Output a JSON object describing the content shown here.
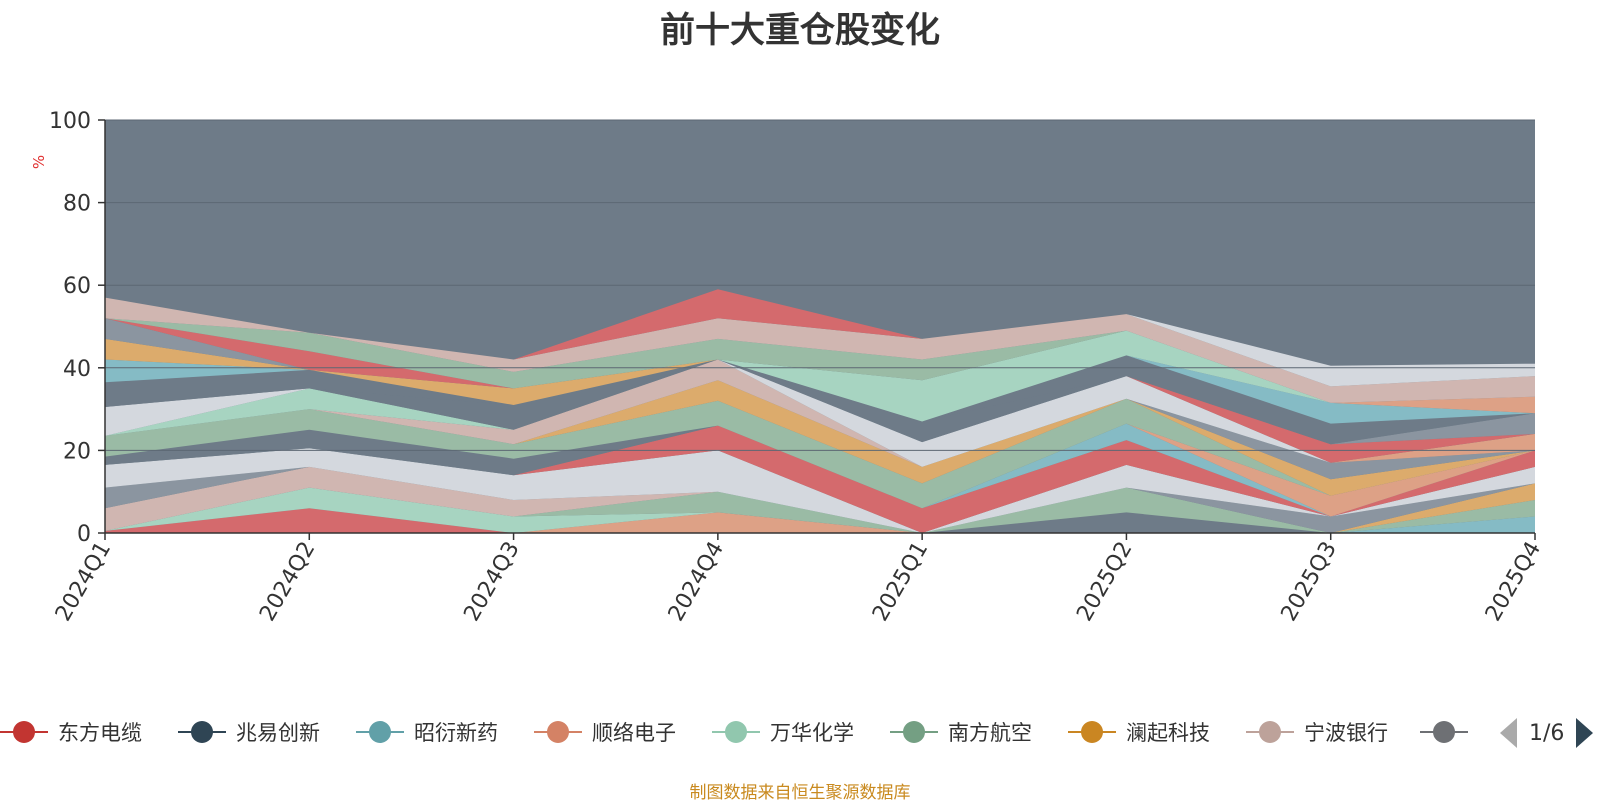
{
  "title": "前十大重仓股变化",
  "source": "制图数据来自恒生聚源数据库",
  "pager": {
    "text": "1/6"
  },
  "colors": {
    "background_area": "#6e7b88",
    "axis": "#333333",
    "grid": "#5c6773",
    "unit": "#e03030"
  },
  "chart_data": {
    "type": "area",
    "stacked": true,
    "categories": [
      "2024Q1",
      "2024Q2",
      "2024Q3",
      "2024Q4",
      "2025Q1",
      "2025Q2",
      "2025Q3",
      "2025Q4"
    ],
    "ylabel": "%",
    "ylim": [
      0,
      100
    ],
    "yticks": [
      0,
      20,
      40,
      60,
      80,
      100
    ],
    "grid": true,
    "legend_position": "bottom",
    "legend": [
      "东方电缆",
      "兆易创新",
      "昭衍新药",
      "顺络电子",
      "万华化学",
      "南方航空",
      "澜起科技",
      "宁波银行"
    ],
    "series": [
      {
        "name": "东方电缆",
        "color": "#d9696b",
        "values": [
          0.5,
          6,
          0,
          0,
          0,
          0,
          0,
          0
        ]
      },
      {
        "name": "",
        "color": "#e3a386",
        "values": [
          0,
          0,
          0,
          5,
          0,
          0,
          0,
          0
        ]
      },
      {
        "name": "",
        "color": "#6e7b88",
        "values": [
          0,
          0,
          0,
          0,
          0,
          5,
          0,
          0
        ]
      },
      {
        "name": "昭衍新药",
        "color": "#86bfc8",
        "values": [
          0,
          0,
          0,
          0,
          0,
          0,
          0,
          4
        ]
      },
      {
        "name": "万华化学",
        "color": "#aad9c4",
        "values": [
          0,
          5,
          4,
          0,
          0,
          0,
          0,
          0
        ]
      },
      {
        "name": "南方航空",
        "color": "#9cbfa6",
        "values": [
          0,
          0,
          0,
          5,
          0,
          6,
          0,
          4
        ]
      },
      {
        "name": "澜起科技",
        "color": "#e2ae6a",
        "values": [
          0,
          0,
          0,
          0,
          0,
          0,
          0,
          4
        ]
      },
      {
        "name": "宁波银行",
        "color": "#d5b9b3",
        "values": [
          5.5,
          5,
          4,
          0,
          0,
          0,
          0,
          0
        ]
      },
      {
        "name": "",
        "color": "#8c97a1",
        "values": [
          5,
          0,
          0,
          0,
          0,
          0,
          4,
          0
        ]
      },
      {
        "name": "",
        "color": "#d9dde3",
        "values": [
          5.5,
          4.5,
          6,
          10,
          0,
          5.5,
          0,
          4
        ]
      },
      {
        "name": "",
        "color": "#d9696b",
        "values": [
          0,
          0,
          0,
          6,
          6,
          6,
          0,
          4
        ]
      },
      {
        "name": "",
        "color": "#86bfc8",
        "values": [
          0,
          0,
          0,
          0,
          0,
          4,
          0,
          0
        ]
      },
      {
        "name": "",
        "color": "#6e7b88",
        "values": [
          2,
          4.5,
          4,
          0,
          0,
          0,
          0,
          0
        ]
      },
      {
        "name": "",
        "color": "#e3a386",
        "values": [
          0,
          0,
          0,
          0,
          0,
          0,
          5,
          0
        ]
      },
      {
        "name": "",
        "color": "#9cbfa6",
        "values": [
          5,
          5,
          3.5,
          6,
          6,
          6,
          0,
          0
        ]
      },
      {
        "name": "",
        "color": "#e2ae6a",
        "values": [
          0,
          0,
          0,
          5,
          4,
          0,
          4,
          0
        ]
      },
      {
        "name": "",
        "color": "#8c97a1",
        "values": [
          0,
          0,
          0,
          0,
          0,
          0,
          4,
          0
        ]
      },
      {
        "name": "",
        "color": "#d5b9b3",
        "values": [
          0,
          0,
          3.5,
          5,
          0,
          0,
          0,
          0
        ]
      },
      {
        "name": "",
        "color": "#d9dde3",
        "values": [
          0,
          0,
          0,
          0,
          6,
          5.5,
          0,
          0
        ]
      },
      {
        "name": "",
        "color": "#e3a386",
        "values": [
          0,
          0,
          0,
          0,
          0,
          0,
          0,
          4
        ]
      },
      {
        "name": "",
        "color": "#aad9c4",
        "values": [
          0,
          5,
          0,
          0,
          0,
          0,
          0,
          0
        ]
      },
      {
        "name": "",
        "color": "#d9696b",
        "values": [
          0,
          0,
          0,
          0,
          0,
          0,
          4.5,
          0
        ]
      },
      {
        "name": "",
        "color": "#6e7b88",
        "values": [
          0,
          0,
          6,
          0,
          5,
          0,
          0,
          0
        ]
      },
      {
        "name": "",
        "color": "#8c97a1",
        "values": [
          0,
          0,
          0,
          0,
          0,
          0,
          0,
          5
        ]
      },
      {
        "name": "",
        "color": "#d9dde3",
        "values": [
          7,
          0,
          0,
          0,
          0,
          0,
          0,
          0
        ]
      },
      {
        "name": "",
        "color": "#6e7b88",
        "values": [
          6,
          4.5,
          0,
          0,
          0,
          5,
          5,
          0
        ]
      },
      {
        "name": "",
        "color": "#e2ae6a",
        "values": [
          0,
          0,
          4,
          0,
          0,
          0,
          0,
          0
        ]
      },
      {
        "name": "",
        "color": "#86bfc8",
        "values": [
          5.5,
          0,
          0,
          0,
          0,
          0,
          5,
          0
        ]
      },
      {
        "name": "",
        "color": "#e3a386",
        "values": [
          0,
          0,
          0,
          0,
          0,
          0,
          0,
          4
        ]
      },
      {
        "name": "",
        "color": "#e2ae6a",
        "values": [
          5,
          0,
          0,
          0,
          0,
          0,
          0,
          0
        ]
      },
      {
        "name": "",
        "color": "#aad9c4",
        "values": [
          0,
          0,
          0,
          0,
          10,
          6,
          0,
          0
        ]
      },
      {
        "name": "",
        "color": "#8c97a1",
        "values": [
          5,
          0,
          0,
          0,
          0,
          0,
          0,
          0
        ]
      },
      {
        "name": "",
        "color": "#d9696b",
        "values": [
          0,
          4.5,
          0,
          0,
          0,
          0,
          0,
          0
        ]
      },
      {
        "name": "",
        "color": "#9cbfa6",
        "values": [
          0,
          4.5,
          4,
          5,
          5,
          0,
          0,
          0
        ]
      },
      {
        "name": "",
        "color": "#d5b9b3",
        "values": [
          5,
          0,
          3,
          5,
          5,
          4,
          4,
          5
        ]
      },
      {
        "name": "",
        "color": "#d9dde3",
        "values": [
          0,
          0,
          0,
          0,
          0,
          0,
          5,
          3
        ]
      },
      {
        "name": "",
        "color": "#d9696b",
        "values": [
          0,
          0,
          0,
          7,
          0,
          0,
          0,
          0
        ]
      }
    ]
  },
  "legend_items": [
    {
      "label": "东方电缆",
      "color": "#c23531"
    },
    {
      "label": "兆易创新",
      "color": "#2f4554"
    },
    {
      "label": "昭衍新药",
      "color": "#61a0a8"
    },
    {
      "label": "顺络电子",
      "color": "#d48265"
    },
    {
      "label": "万华化学",
      "color": "#91c7ae"
    },
    {
      "label": "南方航空",
      "color": "#749f83"
    },
    {
      "label": "澜起科技",
      "color": "#ca8622"
    },
    {
      "label": "宁波银行",
      "color": "#bda29a"
    },
    {
      "label": "",
      "color": "#6e7074"
    }
  ]
}
